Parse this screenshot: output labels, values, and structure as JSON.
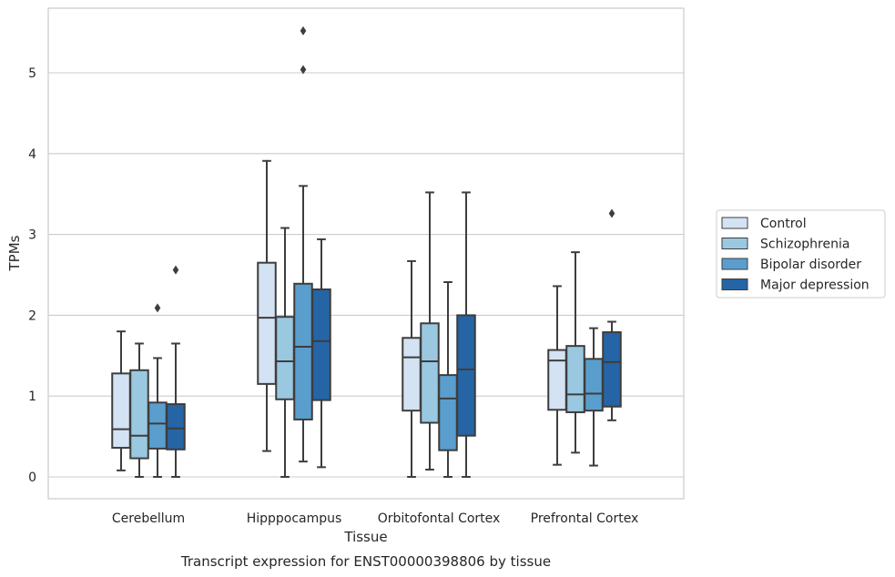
{
  "chart_data": {
    "type": "box",
    "caption": "Transcript expression for ENST00000398806 by tissue",
    "xlabel": "Tissue",
    "ylabel": "TPMs",
    "ylim": [
      -0.27,
      5.8
    ],
    "yticks": [
      0,
      1,
      2,
      3,
      4,
      5
    ],
    "grid": "horizontal",
    "legend_position": "right",
    "categories": [
      "Cerebellum",
      "Hipppocampus",
      "Orbitofontal Cortex",
      "Prefrontal Cortex"
    ],
    "series": [
      {
        "name": "Control",
        "color": "#d3e3f3",
        "boxes": [
          {
            "whislo": 0.08,
            "q1": 0.36,
            "med": 0.59,
            "q3": 1.28,
            "whishi": 1.8,
            "fliers": []
          },
          {
            "whislo": 0.32,
            "q1": 1.15,
            "med": 1.97,
            "q3": 2.65,
            "whishi": 3.91,
            "fliers": []
          },
          {
            "whislo": 0.0,
            "q1": 0.82,
            "med": 1.48,
            "q3": 1.72,
            "whishi": 2.67,
            "fliers": []
          },
          {
            "whislo": 0.15,
            "q1": 0.83,
            "med": 1.44,
            "q3": 1.57,
            "whishi": 2.36,
            "fliers": []
          }
        ]
      },
      {
        "name": "Schizophrenia",
        "color": "#9ac8e0",
        "boxes": [
          {
            "whislo": 0.0,
            "q1": 0.23,
            "med": 0.51,
            "q3": 1.32,
            "whishi": 1.65,
            "fliers": []
          },
          {
            "whislo": 0.0,
            "q1": 0.96,
            "med": 1.43,
            "q3": 1.98,
            "whishi": 3.08,
            "fliers": []
          },
          {
            "whislo": 0.09,
            "q1": 0.67,
            "med": 1.43,
            "q3": 1.9,
            "whishi": 3.52,
            "fliers": []
          },
          {
            "whislo": 0.3,
            "q1": 0.8,
            "med": 1.02,
            "q3": 1.62,
            "whishi": 2.78,
            "fliers": []
          }
        ]
      },
      {
        "name": "Bipolar disorder",
        "color": "#5a9ecd",
        "boxes": [
          {
            "whislo": 0.0,
            "q1": 0.35,
            "med": 0.66,
            "q3": 0.92,
            "whishi": 1.47,
            "fliers": [
              2.09
            ]
          },
          {
            "whislo": 0.19,
            "q1": 0.71,
            "med": 1.61,
            "q3": 2.39,
            "whishi": 3.6,
            "fliers": [
              5.04,
              5.52
            ]
          },
          {
            "whislo": 0.0,
            "q1": 0.33,
            "med": 0.97,
            "q3": 1.26,
            "whishi": 2.41,
            "fliers": []
          },
          {
            "whislo": 0.14,
            "q1": 0.82,
            "med": 1.03,
            "q3": 1.46,
            "whishi": 1.84,
            "fliers": []
          }
        ]
      },
      {
        "name": "Major depression",
        "color": "#2565a6",
        "boxes": [
          {
            "whislo": 0.0,
            "q1": 0.34,
            "med": 0.6,
            "q3": 0.9,
            "whishi": 1.65,
            "fliers": [
              2.56
            ]
          },
          {
            "whislo": 0.12,
            "q1": 0.95,
            "med": 1.68,
            "q3": 2.32,
            "whishi": 2.94,
            "fliers": []
          },
          {
            "whislo": 0.0,
            "q1": 0.51,
            "med": 1.33,
            "q3": 2.0,
            "whishi": 3.52,
            "fliers": []
          },
          {
            "whislo": 0.7,
            "q1": 0.87,
            "med": 1.42,
            "q3": 1.79,
            "whishi": 1.92,
            "fliers": [
              3.26
            ]
          }
        ]
      }
    ]
  }
}
